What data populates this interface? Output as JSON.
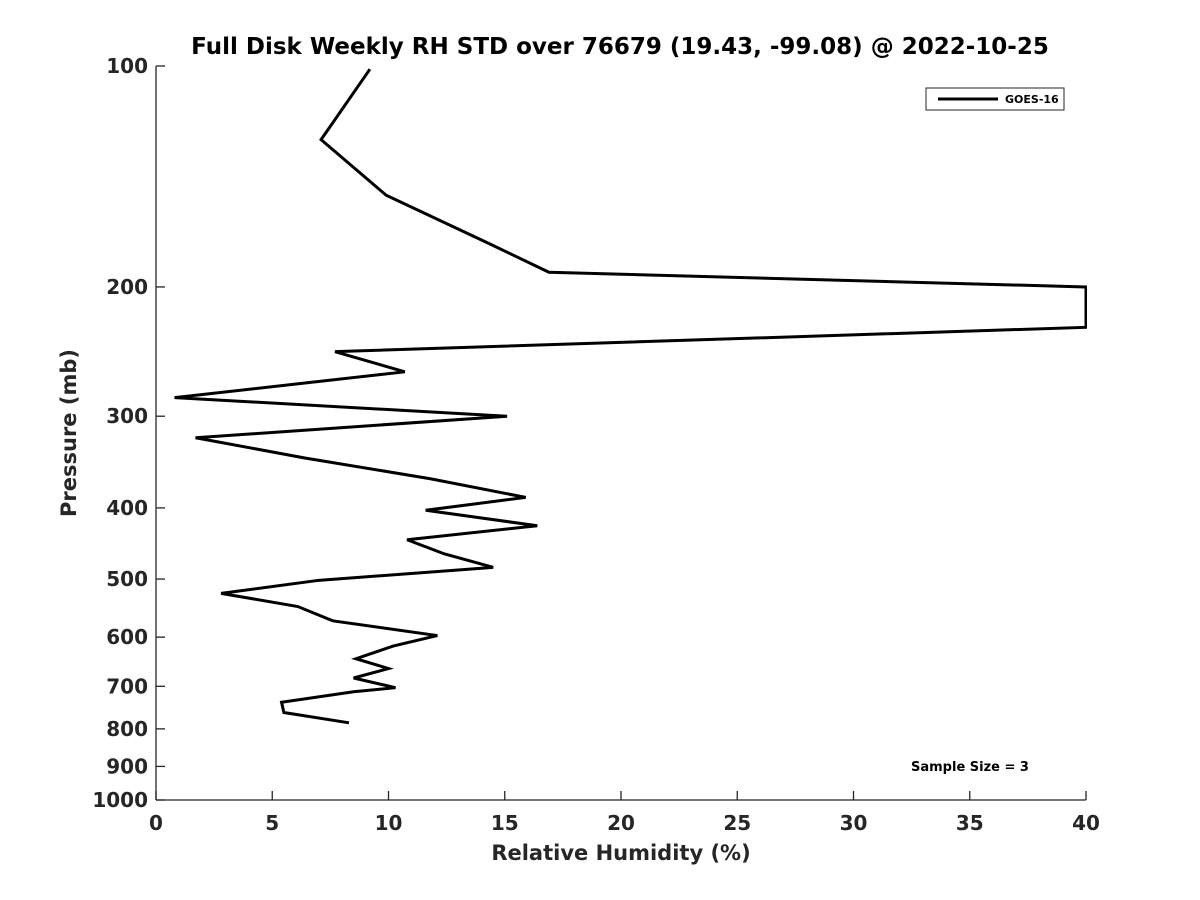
{
  "chart_data": {
    "type": "line",
    "title": "Full Disk Weekly RH STD over 76679 (19.43, -99.08) @ 2022-10-25",
    "xlabel": "Relative Humidity (%)",
    "ylabel": "Pressure (mb)",
    "xlim": [
      0,
      40
    ],
    "ylim": [
      100,
      1000
    ],
    "yscale": "log",
    "y_inverted": true,
    "grid": false,
    "x_ticks": [
      0,
      5,
      10,
      15,
      20,
      25,
      30,
      35,
      40
    ],
    "y_ticks": [
      100,
      200,
      300,
      400,
      500,
      600,
      700,
      800,
      900,
      1000
    ],
    "legend_position": "top-right",
    "annotation": "Sample Size = 3",
    "series": [
      {
        "name": "GOES-16",
        "color": "#000000",
        "x": [
          9.2,
          7.1,
          9.9,
          14.4,
          16.9,
          40.0,
          40.0,
          7.7,
          10.7,
          0.8,
          15.1,
          1.7,
          6.4,
          11.8,
          15.9,
          11.6,
          16.4,
          10.8,
          12.4,
          14.5,
          7.0,
          2.8,
          6.1,
          7.6,
          12.1,
          10.2,
          8.6,
          10.0,
          8.5,
          10.3,
          8.5,
          5.4,
          5.5,
          8.3
        ],
        "y": [
          101,
          126,
          150,
          175,
          191,
          200,
          227,
          245,
          261,
          283,
          300,
          321,
          342,
          365,
          387,
          403,
          423,
          442,
          462,
          482,
          502,
          523,
          545,
          570,
          597,
          617,
          642,
          662,
          682,
          703,
          712,
          736,
          760,
          785
        ]
      }
    ]
  }
}
